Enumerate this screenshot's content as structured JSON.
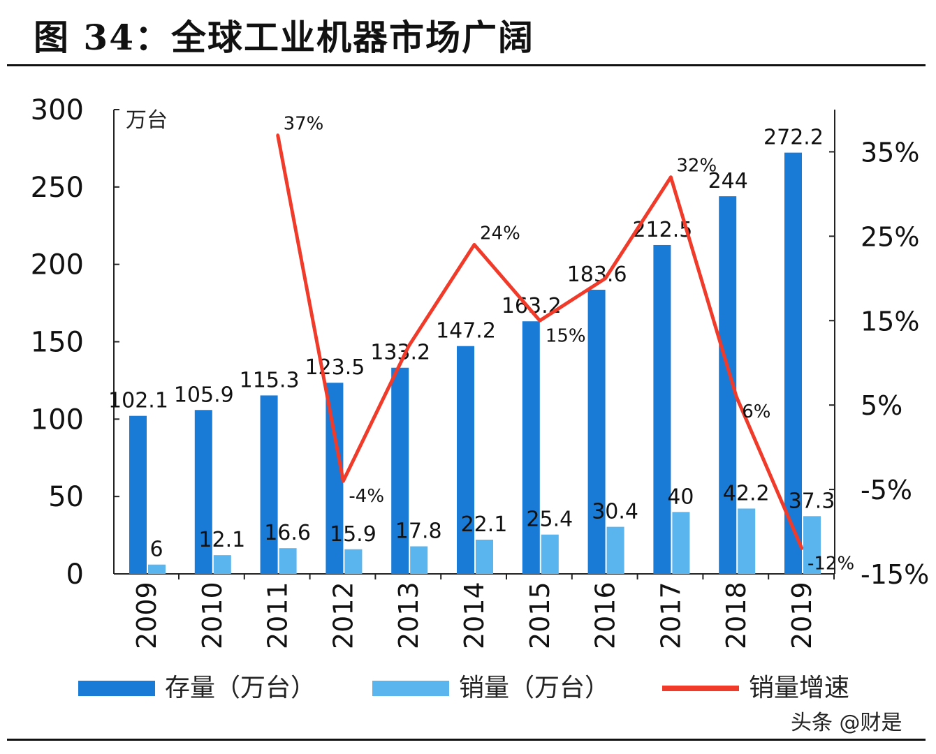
{
  "title": "图 34：全球工业机器市场广阔",
  "watermark": "头条 @财是",
  "colors": {
    "stock": "#1a7bd6",
    "sales": "#5ab4ee",
    "growth": "#f03a2a"
  },
  "chart_data": {
    "type": "bar+line",
    "categories": [
      "2009",
      "2010",
      "2011",
      "2012",
      "2013",
      "2014",
      "2015",
      "2016",
      "2017",
      "2018",
      "2019"
    ],
    "y_unit_label": "万台",
    "ylim": [
      0,
      300
    ],
    "yticks": [
      0,
      50,
      100,
      150,
      200,
      250,
      300
    ],
    "y2lim": [
      -15,
      40
    ],
    "y2ticks": [
      "-15%",
      "-5%",
      "5%",
      "15%",
      "25%",
      "35%"
    ],
    "y2tick_values": [
      -15,
      -5,
      5,
      15,
      25,
      35
    ],
    "legend_position": "bottom",
    "grid": false,
    "series": [
      {
        "name": "存量（万台）",
        "type": "bar",
        "axis": "left",
        "values": [
          102.1,
          105.9,
          115.3,
          123.5,
          133.2,
          147.2,
          163.2,
          183.6,
          212.5,
          244,
          272.2
        ]
      },
      {
        "name": "销量（万台）",
        "type": "bar",
        "axis": "left",
        "values": [
          6,
          12.1,
          16.6,
          15.9,
          17.8,
          22.1,
          25.4,
          30.4,
          40,
          42.2,
          37.3
        ]
      },
      {
        "name": "销量增速",
        "type": "line",
        "axis": "right",
        "values": [
          null,
          null,
          37,
          -4,
          12,
          24,
          15,
          20,
          32,
          6,
          -12
        ],
        "labels": [
          null,
          null,
          "37%",
          "-4%",
          null,
          "24%",
          "15%",
          null,
          "32%",
          "6%",
          "-12%"
        ]
      }
    ]
  }
}
